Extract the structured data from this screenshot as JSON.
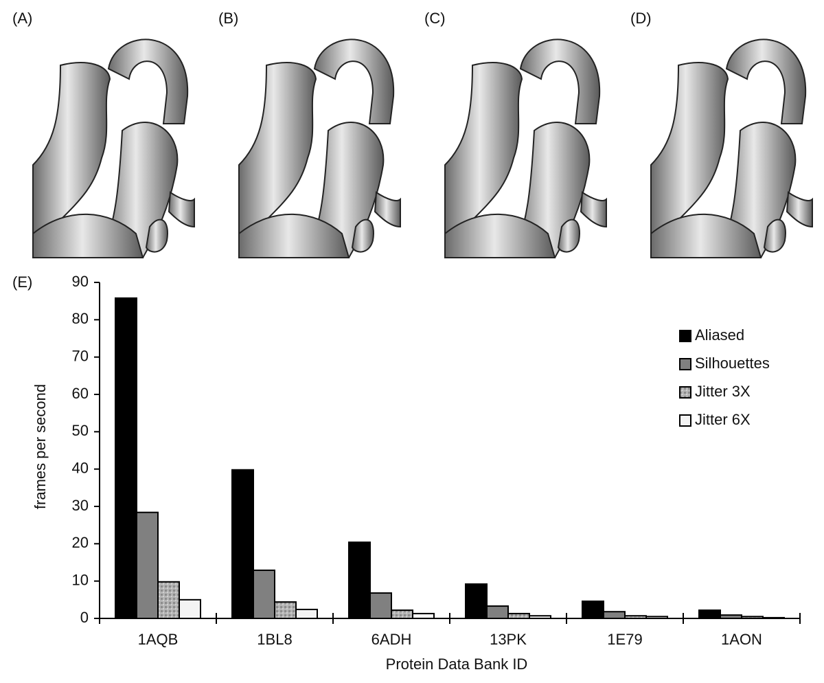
{
  "panel_labels": [
    "(A)",
    "(B)",
    "(C)",
    "(D)"
  ],
  "chart_data": {
    "type": "bar",
    "label": "(E)",
    "x_label": "Protein Data Bank ID",
    "y_label": "frames per second",
    "categories": [
      "1AQB",
      "1BL8",
      "6ADH",
      "13PK",
      "1E79",
      "1AON"
    ],
    "series": [
      {
        "name": "Aliased",
        "color": "#000000",
        "values": [
          85.8,
          39.8,
          20.4,
          9.2,
          4.6,
          2.2
        ]
      },
      {
        "name": "Silhouettes",
        "color": "#808080",
        "values": [
          28.4,
          12.9,
          6.8,
          3.3,
          1.8,
          0.9
        ]
      },
      {
        "name": "Jitter 3X",
        "color": "#a8a8a8",
        "values": [
          9.8,
          4.4,
          2.2,
          1.3,
          0.7,
          0.5
        ]
      },
      {
        "name": "Jitter 6X",
        "color": "#f4f4f4",
        "values": [
          5.0,
          2.4,
          1.3,
          0.7,
          0.5,
          0.2
        ]
      }
    ],
    "ylim": [
      0,
      90
    ],
    "yticks": [
      0,
      10,
      20,
      30,
      40,
      50,
      60,
      70,
      80,
      90
    ],
    "legend": "upper right",
    "grid": false
  }
}
